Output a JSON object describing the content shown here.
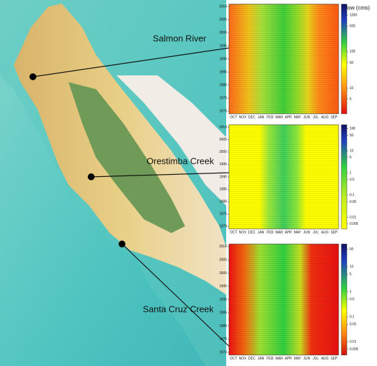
{
  "map": {
    "sites": [
      "Salmon River",
      "Orestimba Creek",
      "Santa Cruz Creek"
    ]
  },
  "months": [
    "OCT",
    "NOV",
    "DEC",
    "JAN",
    "FEB",
    "MAR",
    "APR",
    "MAY",
    "JUN",
    "JUL",
    "AUG",
    "SEP"
  ],
  "colorbar_title": "Flow (cms)",
  "panels": [
    {
      "ylim": [
        1969,
        2011
      ],
      "yticks": [
        2010,
        2005,
        2000,
        1995,
        1990,
        1985,
        1980,
        1975,
        1970
      ],
      "clim": [
        2,
        2000
      ],
      "log_scale": true,
      "cticks": [
        1000,
        500,
        100,
        50,
        10,
        5
      ]
    },
    {
      "ylim": [
        1969,
        2011
      ],
      "yticks": [
        2010,
        2005,
        2000,
        1995,
        1990,
        1985,
        1980,
        1975,
        1970
      ],
      "clim": [
        0.003,
        150
      ],
      "log_scale": true,
      "cticks": [
        100,
        50,
        10,
        5,
        1,
        0.5,
        0.1,
        0.05,
        0.01,
        0.005
      ]
    },
    {
      "ylim": [
        1969,
        2011
      ],
      "yticks": [
        2010,
        2005,
        2000,
        1995,
        1990,
        1985,
        1980,
        1975,
        1970
      ],
      "clim": [
        0.003,
        80
      ],
      "log_scale": true,
      "cticks": [
        50,
        10,
        5,
        1,
        0.5,
        0.1,
        0.05,
        0.01,
        0.005
      ]
    }
  ]
}
